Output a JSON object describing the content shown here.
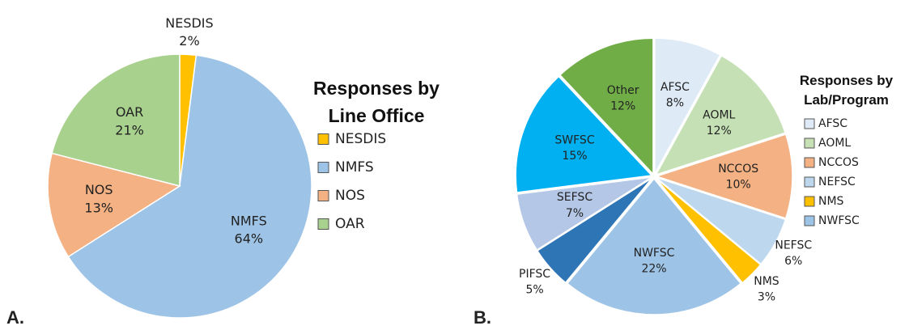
{
  "chart_data": [
    {
      "type": "pie",
      "panel_label": "A.",
      "legend_title": "Responses by Line Office",
      "categories": [
        "NESDIS",
        "NMFS",
        "NOS",
        "OAR"
      ],
      "values": [
        2,
        64,
        13,
        21
      ],
      "value_labels": [
        "2%",
        "64%",
        "13%",
        "21%"
      ],
      "colors": [
        "#ffc000",
        "#9dc3e6",
        "#f4b183",
        "#a9d18e"
      ]
    },
    {
      "type": "pie",
      "panel_label": "B.",
      "legend_title": "Responses by Lab/Program",
      "categories": [
        "AFSC",
        "AOML",
        "NCCOS",
        "NEFSC",
        "NMS",
        "NWFSC",
        "PIFSC",
        "SEFSC",
        "SWFSC",
        "Other"
      ],
      "values": [
        8,
        12,
        10,
        6,
        3,
        22,
        5,
        7,
        15,
        12
      ],
      "value_labels": [
        "8%",
        "12%",
        "10%",
        "6%",
        "3%",
        "22%",
        "5%",
        "7%",
        "15%",
        "12%"
      ],
      "colors": [
        "#deebf7",
        "#c5e0b4",
        "#f4b183",
        "#bdd7ee",
        "#ffc000",
        "#9dc3e6",
        "#2e75b6",
        "#b4c7e7",
        "#00b0f0",
        "#70ad47"
      ],
      "legend": [
        "AFSC",
        "AOML",
        "NCCOS",
        "NEFSC",
        "NMS",
        "NWFSC"
      ]
    }
  ]
}
